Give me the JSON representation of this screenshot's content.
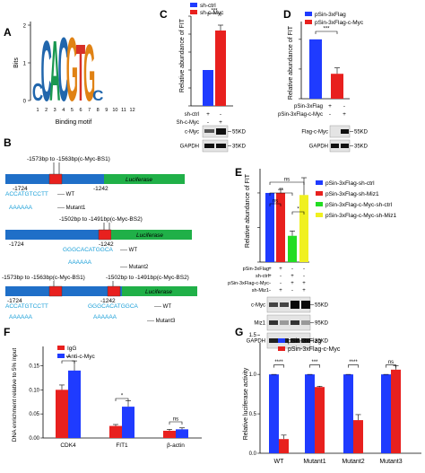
{
  "panels": {
    "A": {
      "letter": "A",
      "ylabel": "Bits",
      "xlabel": "Binding motif",
      "yticks": [
        "2",
        "1",
        "0"
      ],
      "positions": [
        "1",
        "2",
        "3",
        "4",
        "5",
        "6",
        "7",
        "8",
        "9",
        "10",
        "11",
        "12"
      ],
      "motif": [
        {
          "pos": 1,
          "letter": "C",
          "color": "#2166ac",
          "height": 0.5
        },
        {
          "pos": 2,
          "letter": "C",
          "color": "#2166ac",
          "height": 1.7
        },
        {
          "pos": 3,
          "letter": "A",
          "color": "#1a9850",
          "height": 1.7
        },
        {
          "pos": 4,
          "letter": "C",
          "color": "#2166ac",
          "height": 1.8
        },
        {
          "pos": 5,
          "letter": "G",
          "color": "#e08214",
          "height": 1.8
        },
        {
          "pos": 6,
          "letter": "T",
          "color": "#d73027",
          "height": 1.6
        },
        {
          "pos": 7,
          "letter": "G",
          "color": "#e08214",
          "height": 1.6
        },
        {
          "pos": 8,
          "letter": "C",
          "color": "#2166ac",
          "height": 0.3
        }
      ]
    },
    "B": {
      "letter": "B",
      "luciferase": "Luciferase",
      "row1": {
        "top": "-1573bp to -1563bp(c-Myc-BS1)",
        "left": "-1724",
        "right": "-1242",
        "seq": "ACCATGTCCTT",
        "wt": "---- WT",
        "mut": "AAAAAA",
        "mutlabel": "---- Mutant1"
      },
      "row2": {
        "top": "-1502bp to -1491bp(c-Myc-BS2)",
        "left": "-1724",
        "right": "-1242",
        "seq": "GGGCACATGGCA",
        "wt": "---- WT",
        "mut": "AAAAAA",
        "mutlabel": "---- Mutant2"
      },
      "row3": {
        "top1": "-1573bp to -1563bp(c-Myc-BS1)",
        "top2": "-1502bp to -1491bp(c-Myc-BS2)",
        "left": "-1724",
        "right": "-1242",
        "seq1": "ACCATGTCCTT",
        "seq2": "GGGCACATGGCA",
        "wt": "---- WT",
        "mut1": "AAAAAA",
        "mut2": "AAAAAA",
        "mutlabel": "---- Mutant3"
      }
    },
    "C": {
      "letter": "C",
      "ylabel": "Relative abundance of FIT",
      "legend": [
        "sh-ctrl",
        "sh-c-Myc"
      ],
      "sig": "***",
      "rows": [
        {
          "label": "sh-ctrl",
          "vals": [
            "+",
            "-"
          ]
        },
        {
          "label": "Sh-c-Myc",
          "vals": [
            "-",
            "+"
          ]
        }
      ],
      "blots": [
        {
          "label": "c-Myc",
          "kd": "55KD"
        },
        {
          "label": "GAPDH",
          "kd": "35KD"
        }
      ]
    },
    "D": {
      "letter": "D",
      "ylabel": "Relative abundance of FIT",
      "legend": [
        "pSin-3xFlag",
        "pSin-3xFlag-c-Myc"
      ],
      "sig": "***",
      "rows": [
        {
          "label": "pSin-3xFlag",
          "vals": [
            "+",
            "-"
          ]
        },
        {
          "label": "pSin-3xFlag-c-Myc",
          "vals": [
            "-",
            "+"
          ]
        }
      ],
      "blots": [
        {
          "label": "Flag-c-Myc",
          "kd": "55KD"
        },
        {
          "label": "GAPDH",
          "kd": "35KD"
        }
      ]
    },
    "E": {
      "letter": "E",
      "ylabel": "Relative abundance of FIT",
      "legend": [
        "pSin-3xFlag-sh-ctrl",
        "pSin-3xFlag-sh-Miz1",
        "pSin-3xFlag-c-Myc-sh-ctrl",
        "pSin-3xFlag-c-Myc-sh-Miz1"
      ],
      "sigs": [
        "ns",
        "**",
        "ns",
        "*"
      ],
      "rows": [
        {
          "label": "pSin-3xFlag",
          "vals": [
            "+",
            "+",
            "-",
            "-"
          ]
        },
        {
          "label": "sh-ctrl",
          "vals": [
            "+",
            "-",
            "+",
            "-"
          ]
        },
        {
          "label": "pSin-3xFlag-c-Myc",
          "vals": [
            "-",
            "-",
            "+",
            "+"
          ]
        },
        {
          "label": "sh-Miz1",
          "vals": [
            "-",
            "+",
            "-",
            "+"
          ]
        }
      ],
      "blots": [
        {
          "label": "c-Myc",
          "kd": "55KD"
        },
        {
          "label": "Miz1",
          "kd": "95KD"
        },
        {
          "label": "GAPDH",
          "kd": "35KD"
        }
      ]
    },
    "F": {
      "letter": "F",
      "ylabel": "DNA enrichment relative to 5% input",
      "legend": [
        "IgG",
        "Anti-c-Myc"
      ],
      "sigs": [
        "**",
        "*",
        "ns"
      ]
    },
    "G": {
      "letter": "G",
      "ylabel": "Relative luciferase activity",
      "legend": [
        "pSin-3xFlag",
        "pSin-3xFlag-c-Myc"
      ],
      "sigs": [
        "****",
        "***",
        "****",
        "ns"
      ]
    }
  },
  "chart_data": [
    {
      "type": "bar",
      "panel": "C",
      "categories": [
        "sh-ctrl",
        "sh-c-Myc"
      ],
      "series": [
        {
          "name": "sh-ctrl",
          "values": [
            1.0,
            null
          ]
        },
        {
          "name": "sh-c-Myc",
          "values": [
            null,
            2.1
          ]
        }
      ],
      "errors": [
        0,
        0.15
      ],
      "ylabel": "Relative abundance of FIT",
      "ylim": [
        0,
        2.5
      ]
    },
    {
      "type": "bar",
      "panel": "D",
      "categories": [
        "pSin-3xFlag",
        "pSin-3xFlag-c-Myc"
      ],
      "series": [
        {
          "name": "pSin-3xFlag",
          "values": [
            1.0,
            null
          ]
        },
        {
          "name": "pSin-3xFlag-c-Myc",
          "values": [
            null,
            0.42
          ]
        }
      ],
      "errors": [
        0,
        0.1
      ],
      "ylabel": "Relative abundance of FIT",
      "ylim": [
        0,
        1.3
      ]
    },
    {
      "type": "bar",
      "panel": "E",
      "categories": [
        "pSin-3xFlag-sh-ctrl",
        "pSin-3xFlag-sh-Miz1",
        "pSin-3xFlag-c-Myc-sh-ctrl",
        "pSin-3xFlag-c-Myc-sh-Miz1"
      ],
      "values": [
        1.0,
        1.0,
        0.38,
        0.97
      ],
      "errors": [
        0,
        0.05,
        0.07,
        0.25
      ],
      "colors": [
        "#1f3bff",
        "#e8201e",
        "#22dd22",
        "#f0f020"
      ],
      "ylabel": "Relative abundance of FIT",
      "ylim": [
        0,
        1.35
      ]
    },
    {
      "type": "bar",
      "panel": "F",
      "categories": [
        "CDK4",
        "FIT1",
        "β-actin"
      ],
      "series": [
        {
          "name": "IgG",
          "values": [
            0.1,
            0.025,
            0.015
          ]
        },
        {
          "name": "Anti-c-Myc",
          "values": [
            0.14,
            0.065,
            0.018
          ]
        }
      ],
      "errors": [
        [
          0.01,
          0.003,
          0.003
        ],
        [
          0.02,
          0.012,
          0.003
        ]
      ],
      "yticks": [
        "0.00",
        "0.05",
        "0.10",
        "0.15"
      ],
      "ylabel": "DNA enrichment relative to 5% input",
      "ylim": [
        0,
        0.19
      ]
    },
    {
      "type": "bar",
      "panel": "G",
      "categories": [
        "WT",
        "Mutant1",
        "Mutant2",
        "Mutant3"
      ],
      "series": [
        {
          "name": "pSin-3xFlag",
          "values": [
            1.0,
            1.0,
            1.0,
            1.0
          ]
        },
        {
          "name": "pSin-3xFlag-c-Myc",
          "values": [
            0.18,
            0.84,
            0.42,
            1.06
          ]
        }
      ],
      "errors": [
        [
          0,
          0,
          0,
          0
        ],
        [
          0.05,
          0.01,
          0.07,
          0.05
        ]
      ],
      "yticks": [
        "0.0",
        "0.5",
        "1.0",
        "1.5"
      ],
      "ylabel": "Relative luciferase activity",
      "ylim": [
        0,
        1.4
      ]
    }
  ],
  "colors": {
    "blue": "#1f3bff",
    "red": "#e8201e",
    "green": "#22dd22",
    "yellow": "#f0f020",
    "construct_blue": "#1f6fc8",
    "construct_red": "#e8201e",
    "luciferase_green": "#20b048",
    "seq_blue": "#1a9fd8"
  }
}
